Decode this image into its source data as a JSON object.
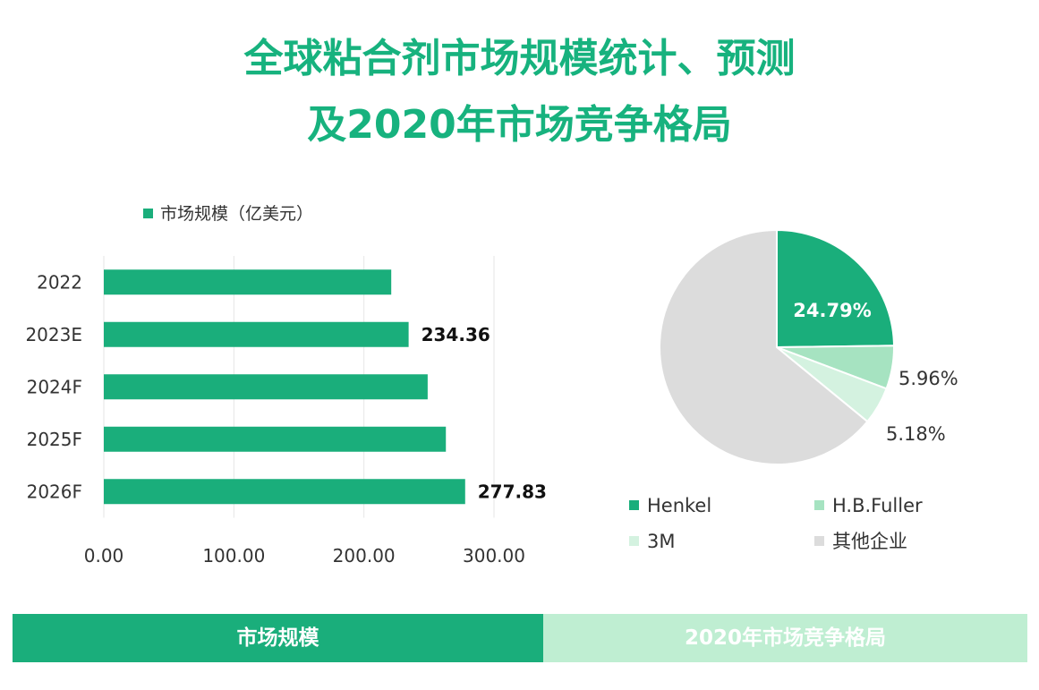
{
  "title": {
    "line1": "全球粘合剂市场规模统计、预测",
    "line2": "及2020年市场竞争格局"
  },
  "tabs": {
    "left": "市场规模",
    "right": "2020年市场竞争格局"
  },
  "colors": {
    "primary": "#1aae7b",
    "henkel": "#1aae7b",
    "hbfuller": "#a6e3c1",
    "m3": "#d4f2e0",
    "others": "#dcdcdc",
    "tab_right": "#bfeed2"
  },
  "chart_data": [
    {
      "type": "bar",
      "orientation": "horizontal",
      "legend": "市场规模（亿美元）",
      "categories": [
        "2022",
        "2023E",
        "2024F",
        "2025F",
        "2026F"
      ],
      "values": [
        221,
        234.36,
        249,
        263,
        277.83
      ],
      "data_labels": [
        "",
        "234.36",
        "",
        "",
        "277.83"
      ],
      "x_ticks": [
        "0.00",
        "100.00",
        "200.00",
        "300.00"
      ],
      "xlim": [
        0,
        300
      ],
      "grid": true
    },
    {
      "type": "pie",
      "labels": [
        "Henkel",
        "H.B.Fuller",
        "3M",
        "其他企业"
      ],
      "values": [
        24.79,
        5.96,
        5.18,
        64.07
      ],
      "data_labels": [
        "24.79%",
        "5.96%",
        "5.18%",
        ""
      ],
      "legend_position": "bottom"
    }
  ]
}
